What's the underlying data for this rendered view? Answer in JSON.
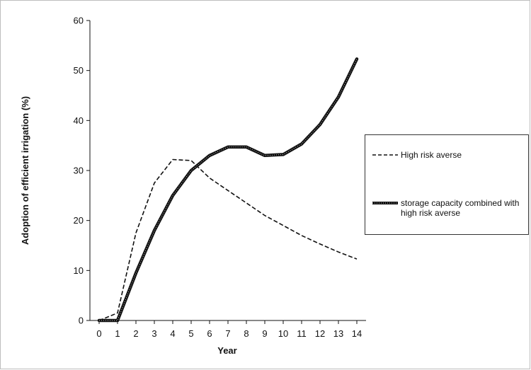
{
  "chart_data": {
    "type": "line",
    "title": "",
    "xlabel": "Year",
    "ylabel": "Adoption of efficient irrigation (%)",
    "xlim": [
      -0.5,
      14.5
    ],
    "ylim": [
      0,
      60
    ],
    "x_ticks": [
      0,
      1,
      2,
      3,
      4,
      5,
      6,
      7,
      8,
      9,
      10,
      11,
      12,
      13,
      14
    ],
    "y_ticks": [
      0,
      10,
      20,
      30,
      40,
      50,
      60
    ],
    "grid": false,
    "legend_position": "right",
    "series": [
      {
        "name": "High risk averse",
        "style": "dashed",
        "color": "#111111",
        "x": [
          0,
          1,
          2,
          3,
          4,
          5,
          6,
          7,
          8,
          9,
          10,
          11,
          12,
          13,
          14
        ],
        "values": [
          0,
          1.5,
          17.5,
          27.5,
          32.2,
          32,
          28.5,
          26,
          23.5,
          21,
          19,
          17,
          15.3,
          13.7,
          12.3
        ]
      },
      {
        "name": "storage capacity combined with high risk averse",
        "style": "thick",
        "color": "#111111",
        "x": [
          0,
          1,
          2,
          3,
          4,
          5,
          6,
          7,
          8,
          9,
          10,
          11,
          12,
          13,
          14
        ],
        "values": [
          0,
          0,
          9.5,
          18,
          25,
          30,
          33,
          34.7,
          34.7,
          33,
          33.2,
          35.3,
          39.2,
          44.7,
          52.3
        ]
      }
    ]
  }
}
